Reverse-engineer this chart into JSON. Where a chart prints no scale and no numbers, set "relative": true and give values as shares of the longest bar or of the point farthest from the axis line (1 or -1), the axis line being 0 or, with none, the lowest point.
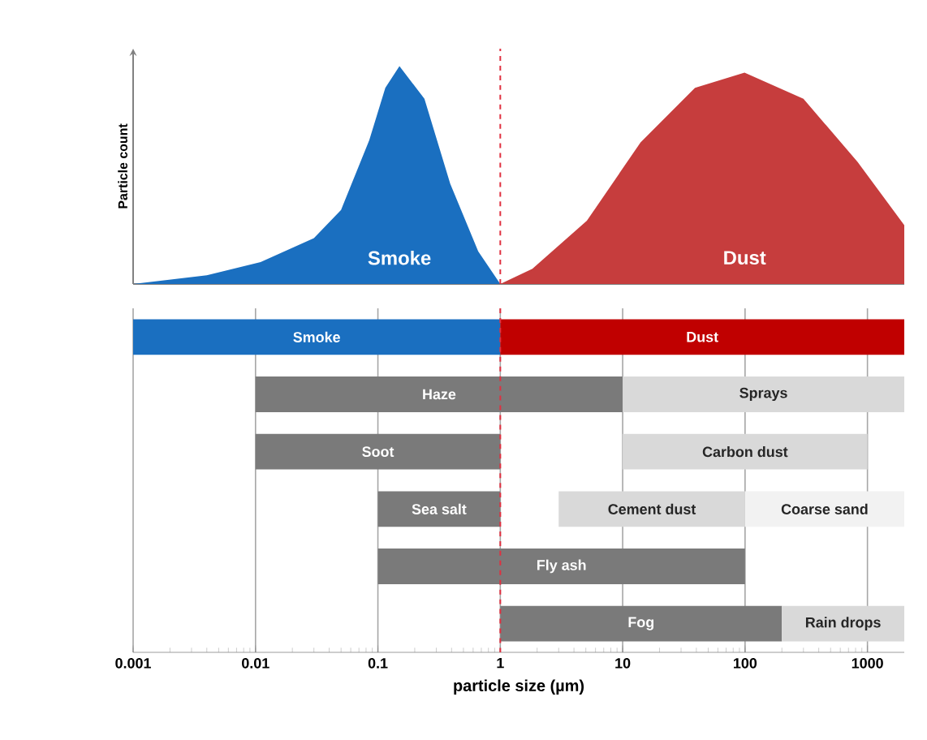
{
  "chart_data": [
    {
      "type": "area",
      "relative": true,
      "ylabel": "Particle count",
      "log": "x",
      "xlim": [
        0.001,
        2000
      ],
      "series": [
        {
          "name": "Smoke",
          "color": "#1a6fc0",
          "x": [
            0.001,
            0.004,
            0.011,
            0.03,
            0.05,
            0.085,
            0.115,
            0.15,
            0.24,
            0.39,
            0.66,
            1
          ],
          "values": [
            0,
            0.04,
            0.1,
            0.21,
            0.34,
            0.66,
            0.9,
            1,
            0.85,
            0.46,
            0.15,
            0
          ]
        },
        {
          "name": "Dust",
          "color": "#c63d3d",
          "x": [
            1,
            1.83,
            5.1,
            14,
            39,
            99,
            300,
            830,
            2000
          ],
          "values": [
            0,
            0.07,
            0.29,
            0.65,
            0.9,
            0.97,
            0.85,
            0.56,
            0.27
          ]
        }
      ],
      "ref_lines": [
        {
          "axis": "x",
          "value": 1,
          "color": "#e03040",
          "line_style": "dashed"
        }
      ]
    },
    {
      "type": "bar",
      "orientation": "horizontal",
      "log": "x",
      "xlim": [
        0.001,
        2000
      ],
      "xticks": [
        0.001,
        0.01,
        0.1,
        1,
        10,
        100,
        1000
      ],
      "grid": "x",
      "xlabel": "particle size (µm)",
      "categories": [
        null,
        null,
        null,
        null,
        null,
        null
      ],
      "series": [
        {
          "color": "#1a6fc0",
          "base": [
            0.001,
            null,
            null,
            null,
            null,
            null
          ],
          "values": [
            0.999,
            null,
            null,
            null,
            null,
            null
          ],
          "value_labels": [
            "Smoke",
            null,
            null,
            null,
            null,
            null
          ]
        },
        {
          "color": "#c00000",
          "base": [
            1,
            null,
            null,
            null,
            null,
            null
          ],
          "values": [
            1999,
            null,
            null,
            null,
            null,
            null
          ],
          "value_labels": [
            "Dust",
            null,
            null,
            null,
            null,
            null
          ]
        },
        {
          "color": "#7a7a7a",
          "base": [
            null,
            0.01,
            0.01,
            0.1,
            0.1,
            1
          ],
          "values": [
            null,
            9.99,
            0.99,
            0.9,
            99.9,
            199
          ],
          "value_labels": [
            null,
            "Haze",
            "Soot",
            "Sea salt",
            "Fly ash",
            "Fog"
          ]
        },
        {
          "color": "#d9d9d9",
          "base": [
            null,
            10,
            10,
            3,
            null,
            200
          ],
          "values": [
            null,
            1990,
            990,
            97,
            null,
            1800
          ],
          "value_labels": [
            null,
            "Sprays",
            "Carbon dust",
            "Cement dust",
            null,
            "Rain drops"
          ]
        },
        {
          "color": "#f2f2f2",
          "base": [
            null,
            null,
            null,
            100,
            null,
            null
          ],
          "values": [
            null,
            null,
            null,
            1900,
            null,
            null
          ],
          "value_labels": [
            null,
            null,
            null,
            "Coarse sand",
            null,
            null
          ]
        }
      ],
      "ref_lines": [
        {
          "axis": "x",
          "value": 1,
          "color": "#e03040",
          "line_style": "dashed"
        }
      ]
    }
  ]
}
